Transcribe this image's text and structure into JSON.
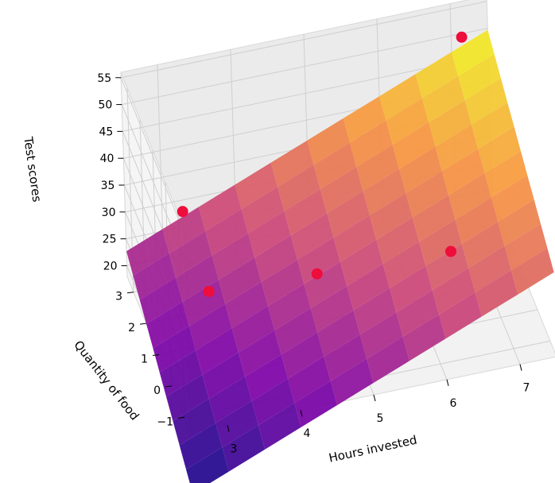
{
  "chart_data": {
    "type": "surface3d",
    "xlabel": "Hours invested",
    "ylabel": "Quantity of food",
    "zlabel": "Test scores",
    "x_ticks": [
      "3",
      "4",
      "5",
      "6",
      "7"
    ],
    "y_ticks": [
      "−1",
      "0",
      "1",
      "2",
      "3"
    ],
    "z_ticks": [
      "20",
      "25",
      "30",
      "35",
      "40",
      "45",
      "50",
      "55"
    ],
    "xlim": [
      2.5,
      7.5
    ],
    "ylim": [
      -1.5,
      3.5
    ],
    "zlim": [
      18,
      56
    ],
    "surface": {
      "x_range": [
        2.5,
        7.5
      ],
      "y_range": [
        -1.5,
        3.5
      ],
      "colormap": "plasma",
      "fit": {
        "intercept": -2.0,
        "coef_hours": 5.4,
        "coef_food": 3.2
      }
    },
    "points": [
      {
        "x": 3.2,
        "y": 3.0,
        "z": 31
      },
      {
        "x": 3.3,
        "y": 1.6,
        "z": 24
      },
      {
        "x": 7.0,
        "y": 2.6,
        "z": 55
      },
      {
        "x": 6.3,
        "y": -0.3,
        "z": 34
      },
      {
        "x": 4.6,
        "y": 0.5,
        "z": 30
      }
    ],
    "point_color": "#ee0d3b",
    "grid": true
  }
}
